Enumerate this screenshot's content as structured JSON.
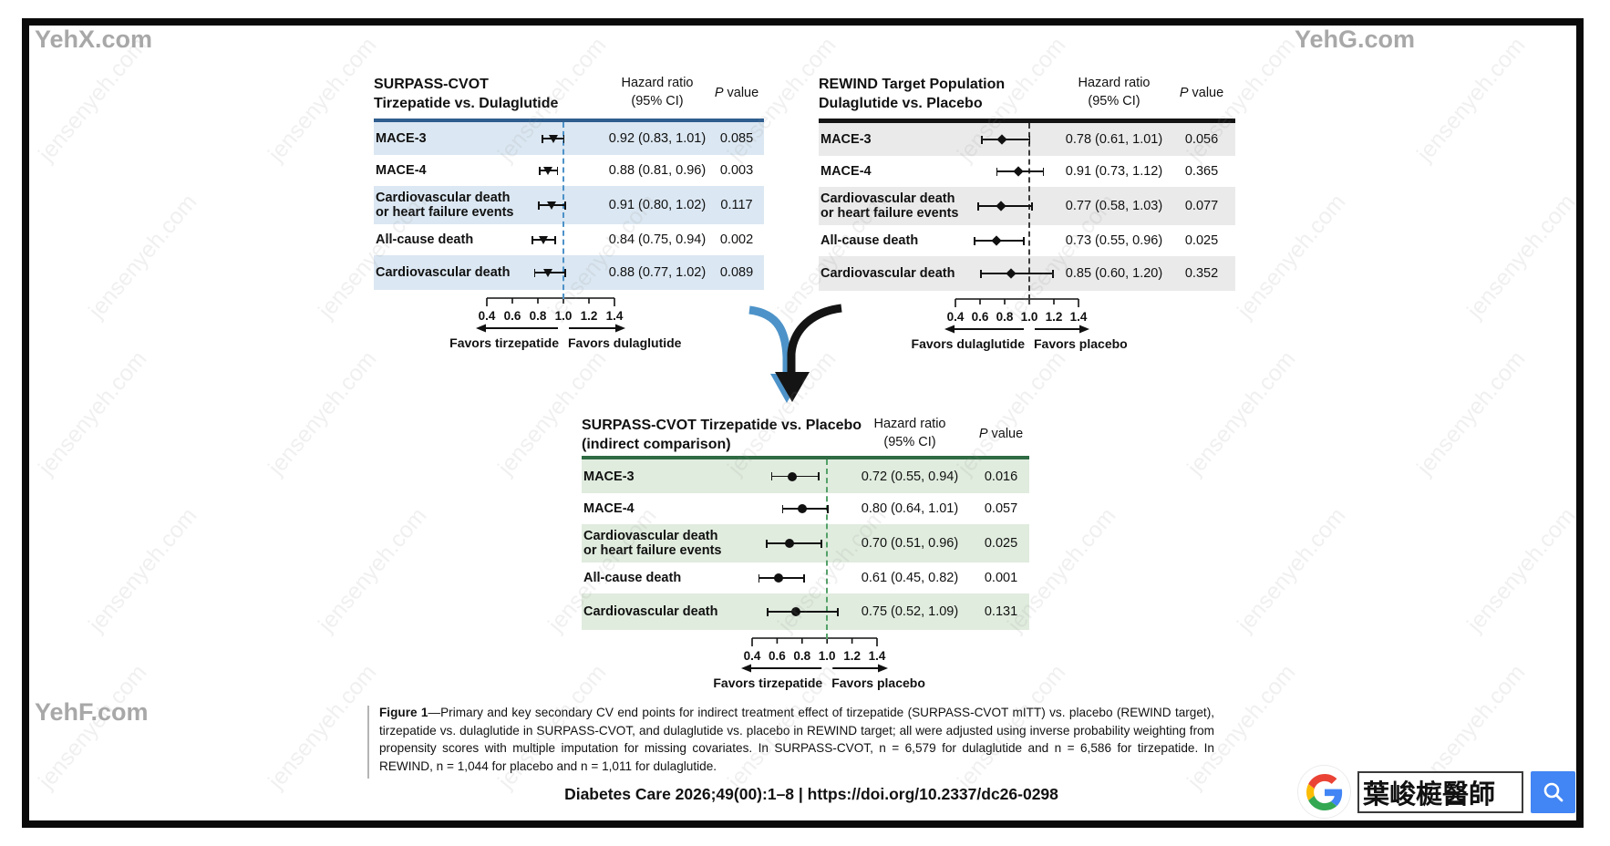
{
  "page": {
    "corner_watermarks": {
      "top_left": "YehX.com",
      "top_right": "YehG.com",
      "bottom_left": "YehF.com"
    },
    "diagonal_watermark": "jensenyeh.com"
  },
  "chart_data": [
    {
      "type": "forest",
      "title_line1": "SURPASS-CVOT",
      "title_line2": "Tirzepatide vs. Dulaglutide",
      "hr_header_line1": "Hazard ratio",
      "hr_header_line2": "(95% CI)",
      "p_header_italic": "P",
      "p_header_rest": " value",
      "marker": "triangle",
      "theme": {
        "accent": "#2e5d8e",
        "row_shade": "#dbe7f2",
        "refline": "#4d92c9"
      },
      "axis": {
        "ticks": [
          "0.4",
          "0.6",
          "0.8",
          "1.0",
          "1.2",
          "1.4"
        ],
        "min": 0.4,
        "max": 1.4,
        "refline": 1.0
      },
      "favors_left": "Favors tirzepatide",
      "favors_right": "Favors dulaglutide",
      "rows": [
        {
          "label": "MACE-3",
          "est": 0.92,
          "lo": 0.83,
          "hi": 1.01,
          "hr_text": "0.92 (0.83, 1.01)",
          "p": "0.085",
          "shaded": true
        },
        {
          "label": "MACE-4",
          "est": 0.88,
          "lo": 0.81,
          "hi": 0.96,
          "hr_text": "0.88 (0.81, 0.96)",
          "p": "0.003",
          "shaded": false
        },
        {
          "label": "Cardiovascular death",
          "label2": "or heart failure events",
          "est": 0.91,
          "lo": 0.8,
          "hi": 1.02,
          "hr_text": "0.91 (0.80, 1.02)",
          "p": "0.117",
          "shaded": true
        },
        {
          "label": "All-cause death",
          "est": 0.84,
          "lo": 0.75,
          "hi": 0.94,
          "hr_text": "0.84 (0.75, 0.94)",
          "p": "0.002",
          "shaded": false
        },
        {
          "label": "Cardiovascular death",
          "est": 0.88,
          "lo": 0.77,
          "hi": 1.02,
          "hr_text": "0.88 (0.77, 1.02)",
          "p": "0.089",
          "shaded": true
        }
      ]
    },
    {
      "type": "forest",
      "title_line1": "REWIND Target Population",
      "title_line2": "Dulaglutide vs. Placebo",
      "hr_header_line1": "Hazard ratio",
      "hr_header_line2": "(95% CI)",
      "p_header_italic": "P",
      "p_header_rest": " value",
      "marker": "diamond",
      "theme": {
        "accent": "#141414",
        "row_shade": "#eaeaea",
        "refline": "#3c3c3c"
      },
      "axis": {
        "ticks": [
          "0.4",
          "0.6",
          "0.8",
          "1.0",
          "1.2",
          "1.4"
        ],
        "min": 0.4,
        "max": 1.4,
        "refline": 1.0
      },
      "favors_left": "Favors dulaglutide",
      "favors_right": "Favors placebo",
      "rows": [
        {
          "label": "MACE-3",
          "est": 0.78,
          "lo": 0.61,
          "hi": 1.01,
          "hr_text": "0.78 (0.61, 1.01)",
          "p": "0.056",
          "shaded": true
        },
        {
          "label": "MACE-4",
          "est": 0.91,
          "lo": 0.73,
          "hi": 1.12,
          "hr_text": "0.91 (0.73, 1.12)",
          "p": "0.365",
          "shaded": false
        },
        {
          "label": "Cardiovascular death",
          "label2": "or heart failure events",
          "est": 0.77,
          "lo": 0.58,
          "hi": 1.03,
          "hr_text": "0.77 (0.58, 1.03)",
          "p": "0.077",
          "shaded": true
        },
        {
          "label": "All-cause death",
          "est": 0.73,
          "lo": 0.55,
          "hi": 0.96,
          "hr_text": "0.73 (0.55, 0.96)",
          "p": "0.025",
          "shaded": false
        },
        {
          "label": "Cardiovascular death",
          "est": 0.85,
          "lo": 0.6,
          "hi": 1.2,
          "hr_text": "0.85 (0.60, 1.20)",
          "p": "0.352",
          "shaded": true
        }
      ]
    },
    {
      "type": "forest",
      "title_line1": "SURPASS-CVOT Tirzepatide vs. Placebo",
      "title_line2": "(indirect comparison)",
      "hr_header_line1": "Hazard ratio",
      "hr_header_line2": "(95% CI)",
      "p_header_italic": "P",
      "p_header_rest": " value",
      "marker": "circle",
      "theme": {
        "accent": "#2f6b44",
        "row_shade": "#e0ecde",
        "refline": "#54a168"
      },
      "axis": {
        "ticks": [
          "0.4",
          "0.6",
          "0.8",
          "1.0",
          "1.2",
          "1.4"
        ],
        "min": 0.4,
        "max": 1.4,
        "refline": 1.0
      },
      "favors_left": "Favors tirzepatide",
      "favors_right": "Favors placebo",
      "rows": [
        {
          "label": "MACE-3",
          "est": 0.72,
          "lo": 0.55,
          "hi": 0.94,
          "hr_text": "0.72 (0.55, 0.94)",
          "p": "0.016",
          "shaded": true
        },
        {
          "label": "MACE-4",
          "est": 0.8,
          "lo": 0.64,
          "hi": 1.01,
          "hr_text": "0.80 (0.64, 1.01)",
          "p": "0.057",
          "shaded": false
        },
        {
          "label": "Cardiovascular death",
          "label2": "or heart failure events",
          "est": 0.7,
          "lo": 0.51,
          "hi": 0.96,
          "hr_text": "0.70 (0.51, 0.96)",
          "p": "0.025",
          "shaded": true
        },
        {
          "label": "All-cause death",
          "est": 0.61,
          "lo": 0.45,
          "hi": 0.82,
          "hr_text": "0.61 (0.45, 0.82)",
          "p": "0.001",
          "shaded": false
        },
        {
          "label": "Cardiovascular death",
          "est": 0.75,
          "lo": 0.52,
          "hi": 1.09,
          "hr_text": "0.75 (0.52, 1.09)",
          "p": "0.131",
          "shaded": true
        }
      ]
    }
  ],
  "caption": {
    "label": "Figure 1",
    "text": "—Primary and key secondary CV end points for indirect treatment effect of tirzepatide (SURPASS-CVOT mITT) vs. placebo (REWIND target), tirzepatide vs. dulaglutide in SURPASS-CVOT, and dulaglutide vs. placebo in REWIND target; all were adjusted using inverse probability weighting from propensity scores with multiple imputation for missing covariates. In SURPASS-CVOT, n = 6,579 for dulaglutide and n = 6,586 for tirzepatide. In REWIND, n = 1,044 for placebo and n = 1,011 for dulaglutide."
  },
  "citation": "Diabetes Care 2026;49(00):1–8 | https://doi.org/10.2337/dc26-0298",
  "search_widget": {
    "query": "葉峻榳醫師",
    "button_color": "#4285f4"
  }
}
